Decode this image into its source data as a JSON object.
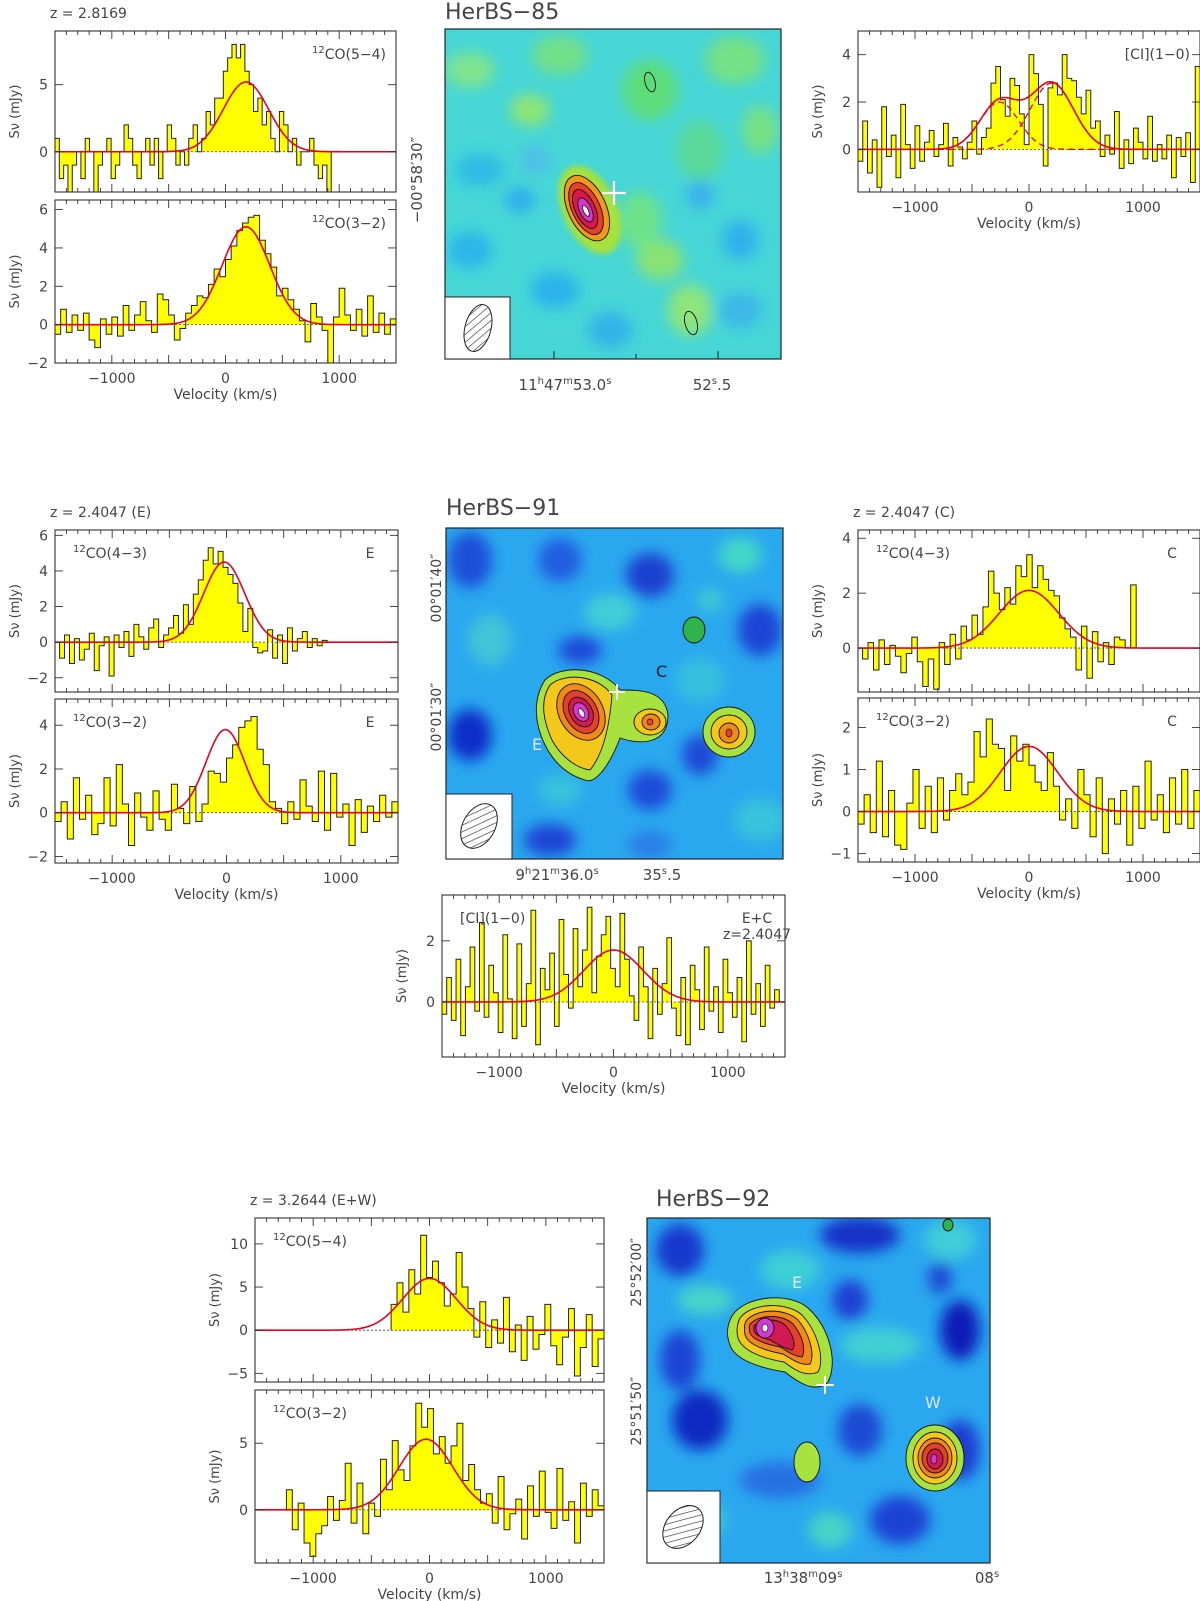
{
  "chart_data": [
    {
      "id": "s85a",
      "type": "step",
      "redshift_label": "z = 2.8169",
      "line_label": "12CO(5−4)",
      "line_iso": "12",
      "line_main": "CO(5−4)",
      "ylabel": "Sν (mJy)",
      "xlabel": "",
      "xlim": [
        -1500,
        1500
      ],
      "ylim": [
        -3,
        9
      ],
      "yticks": [
        0,
        5
      ],
      "xticks": [
        -1000,
        0,
        1000
      ],
      "show_xticklabels": false,
      "x_start": -1500,
      "x_end": 930,
      "values": [
        1,
        -2,
        -1,
        -3,
        -1,
        0,
        -2,
        1,
        0,
        -3,
        -1,
        0,
        1,
        -2,
        -1,
        0,
        2,
        1,
        -1,
        -2,
        0,
        1,
        -1,
        1,
        -2,
        0,
        2,
        1,
        -1,
        0,
        -1,
        1,
        2,
        0,
        1,
        3,
        2,
        4,
        4,
        6,
        7,
        8,
        7,
        8,
        6,
        5,
        3,
        4,
        2,
        3,
        1,
        0,
        3,
        2,
        0,
        1,
        -1,
        0,
        0,
        1,
        -1,
        -2,
        -1,
        -3
      ],
      "gaussian": [
        {
          "amp": 5.2,
          "center": 180,
          "sigma": 200
        }
      ],
      "baseline_dashed": true
    },
    {
      "id": "s85b",
      "type": "step",
      "line_label": "12CO(3−2)",
      "line_iso": "12",
      "line_main": "CO(3−2)",
      "ylabel": "Sν (mJy)",
      "xlabel": "Velocity (km/s)",
      "xlim": [
        -1500,
        1500
      ],
      "ylim": [
        -2,
        6.5
      ],
      "yticks": [
        -2,
        0,
        2,
        4,
        6
      ],
      "xticks": [
        -1000,
        0,
        1000
      ],
      "show_xticklabels": true,
      "x_start": -1500,
      "x_end": 1500,
      "values": [
        -0.5,
        0.8,
        -0.4,
        0.5,
        -0.3,
        0.6,
        -0.8,
        -1.2,
        0.3,
        -0.5,
        0.4,
        -0.6,
        1.0,
        -0.3,
        0.5,
        1.2,
        0.2,
        -0.4,
        1.6,
        1.3,
        0.5,
        -0.8,
        -0.2,
        0.6,
        1.0,
        1.5,
        1.4,
        2.1,
        2.9,
        2.5,
        3.4,
        4.1,
        4.9,
        5.3,
        5.6,
        5.7,
        4.4,
        3.7,
        3.0,
        1.5,
        1.9,
        1.3,
        0.8,
        0.2,
        -0.9,
        1.1,
        0.4,
        -0.3,
        -2.0,
        0.4,
        1.9,
        0.5,
        -0.3,
        0.8,
        -0.6,
        1.5,
        -0.4,
        0.6,
        -0.5,
        0.3
      ],
      "gaussian": [
        {
          "amp": 5.1,
          "center": 180,
          "sigma": 210
        }
      ],
      "baseline_dashed": true
    },
    {
      "id": "s85c",
      "type": "step",
      "line_label": "[CI](1−0)",
      "line_iso": "",
      "line_main": "[CI](1−0)",
      "ylabel": "Sν (mJy)",
      "xlabel": "Velocity (km/s)",
      "xlim": [
        -1500,
        1500
      ],
      "ylim": [
        -1.8,
        5
      ],
      "yticks": [
        0,
        2,
        4
      ],
      "xticks": [
        -1000,
        0,
        1000
      ],
      "show_xticklabels": true,
      "x_start": -1500,
      "x_end": 1500,
      "values": [
        -0.5,
        1.2,
        -1.0,
        0.4,
        -1.6,
        1.8,
        -0.3,
        0.6,
        -1.2,
        1.9,
        0.2,
        -0.8,
        1.0,
        -0.5,
        0.3,
        0.8,
        -0.3,
        0.2,
        1.1,
        -0.7,
        0.5,
        0.1,
        -0.4,
        0.3,
        1.2,
        -0.2,
        0.5,
        0.9,
        2.8,
        3.5,
        2.1,
        1.4,
        3.0,
        2.7,
        1.5,
        0.2,
        4.0,
        3.2,
        1.9,
        -0.7,
        2.6,
        2.8,
        2.3,
        4.0,
        3.0,
        2.9,
        2.2,
        1.5,
        2.5,
        0.9,
        1.2,
        -0.3,
        0.6,
        -0.2,
        1.6,
        -0.8,
        0.4,
        -0.6,
        0.9,
        0.3,
        -0.4,
        1.4,
        -0.5,
        0.2,
        -0.4,
        0.6,
        -1.2,
        0.5,
        -0.3,
        0.7,
        -1.4,
        3.5
      ],
      "gaussian": [
        {
          "amp": 2.0,
          "center": -260,
          "sigma": 170
        },
        {
          "amp": 2.8,
          "center": 200,
          "sigma": 190
        }
      ],
      "baseline_dashed": true
    },
    {
      "id": "s91a",
      "type": "step",
      "redshift_label": "z = 2.4047 (E)",
      "line_label": "12CO(4−3)",
      "line_iso": "12",
      "line_main": "CO(4−3)",
      "tag": "E",
      "ylabel": "Sν (mJy)",
      "xlabel": "",
      "xlim": [
        -1500,
        1500
      ],
      "ylim": [
        -2.8,
        6.3
      ],
      "yticks": [
        -2,
        0,
        2,
        4,
        6
      ],
      "xticks": [
        -1000,
        0,
        1000
      ],
      "show_xticklabels": false,
      "x_start": -1460,
      "x_end": 880,
      "values": [
        -0.9,
        0.4,
        -1.2,
        0.2,
        -1.0,
        -0.4,
        0.5,
        -1.6,
        -0.2,
        0.3,
        -1.9,
        0.4,
        -0.3,
        0.6,
        -0.8,
        1.0,
        0.3,
        -0.4,
        0.8,
        1.3,
        -0.3,
        0.4,
        0.8,
        1.5,
        0.5,
        2.1,
        1.0,
        2.7,
        3.5,
        4.6,
        5.3,
        4.4,
        5.1,
        4.2,
        3.8,
        3.3,
        2.2,
        0.6,
        1.9,
        -0.3,
        -0.6,
        -0.5,
        0.7,
        -0.9,
        0.4,
        -1.2,
        0.8,
        -0.5,
        0.2,
        0.6,
        -0.3,
        0.2,
        -0.2,
        0.1
      ],
      "gaussian": [
        {
          "amp": 4.5,
          "center": -20,
          "sigma": 180
        }
      ],
      "baseline_dashed": false
    },
    {
      "id": "s91b",
      "type": "step",
      "line_label": "12CO(3−2)",
      "line_iso": "12",
      "line_main": "CO(3−2)",
      "tag": "E",
      "ylabel": "Sν (mJy)",
      "xlabel": "Velocity (km/s)",
      "xlim": [
        -1500,
        1500
      ],
      "ylim": [
        -2.3,
        5.2
      ],
      "yticks": [
        -2,
        0,
        2,
        4
      ],
      "xticks": [
        -1000,
        0,
        1000
      ],
      "show_xticklabels": true,
      "x_start": -1500,
      "x_end": 1500,
      "values": [
        -0.4,
        0.5,
        -1.2,
        1.6,
        -0.3,
        0.8,
        -1.0,
        -0.5,
        1.6,
        -0.6,
        2.2,
        0.4,
        -1.5,
        0.9,
        -0.2,
        -0.8,
        1.0,
        -0.3,
        -0.8,
        1.3,
        0.2,
        -0.5,
        1.2,
        -0.4,
        0.4,
        1.9,
        1.8,
        1.4,
        2.5,
        3.1,
        3.9,
        4.2,
        4.4,
        2.9,
        2.2,
        0.5,
        0.2,
        -0.5,
        0.5,
        -0.3,
        1.5,
        0.3,
        -0.4,
        1.9,
        -0.8,
        1.8,
        -0.2,
        0.4,
        -1.5,
        0.6,
        -0.9,
        0.3,
        -0.4,
        0.8,
        -0.2,
        0.5
      ],
      "gaussian": [
        {
          "amp": 3.8,
          "center": -10,
          "sigma": 170
        }
      ],
      "baseline_dashed": false
    },
    {
      "id": "s91c",
      "type": "step",
      "redshift_label": "z = 2.4047 (C)",
      "line_label": "12CO(4−3)",
      "line_iso": "12",
      "line_main": "CO(4−3)",
      "tag": "C",
      "ylabel": "Sν (mJy)",
      "xlabel": "",
      "xlim": [
        -1500,
        1500
      ],
      "ylim": [
        -1.6,
        4.3
      ],
      "yticks": [
        0,
        2,
        4
      ],
      "xticks": [
        -1000,
        0,
        1000
      ],
      "show_xticklabels": false,
      "x_start": -1460,
      "x_end": 940,
      "values": [
        -0.4,
        0.2,
        -0.8,
        0.3,
        -0.6,
        0.1,
        -0.3,
        -0.9,
        -0.2,
        0.4,
        -0.5,
        -1.4,
        -0.4,
        -1.5,
        0.2,
        -0.6,
        0.5,
        -0.4,
        0.8,
        0.3,
        1.2,
        0.5,
        1.5,
        2.8,
        2.0,
        1.4,
        2.2,
        1.6,
        3.0,
        2.6,
        3.4,
        2.2,
        3.0,
        2.5,
        2.1,
        1.9,
        1.1,
        0.7,
        0.4,
        -0.8,
        0.8,
        -1.1,
        0.6,
        -0.5,
        0.2,
        -0.6,
        0.4,
        0.3,
        0,
        2.3
      ],
      "gaussian": [
        {
          "amp": 2.1,
          "center": 0,
          "sigma": 260
        }
      ],
      "baseline_dashed": false
    },
    {
      "id": "s91d",
      "type": "step",
      "line_label": "12CO(3−2)",
      "line_iso": "12",
      "line_main": "CO(3−2)",
      "tag": "C",
      "ylabel": "Sν (mJy)",
      "xlabel": "Velocity (km/s)",
      "xlim": [
        -1500,
        1500
      ],
      "ylim": [
        -1.2,
        2.7
      ],
      "yticks": [
        -1,
        0,
        1,
        2
      ],
      "xticks": [
        -1000,
        0,
        1000
      ],
      "show_xticklabels": true,
      "x_start": -1500,
      "x_end": 1500,
      "values": [
        -0.3,
        0.4,
        -0.5,
        1.2,
        -0.6,
        0.5,
        -0.8,
        -0.9,
        0.2,
        1.0,
        -0.4,
        0.6,
        -0.5,
        0.8,
        -0.2,
        0.5,
        0.9,
        0.4,
        0.7,
        1.9,
        1.3,
        2.2,
        1.6,
        1.5,
        0.5,
        1.8,
        1.2,
        1.6,
        1.1,
        0.7,
        0.5,
        1.4,
        0.6,
        -0.2,
        0.3,
        -0.4,
        1.0,
        0.4,
        -0.6,
        0.8,
        -1.0,
        0.3,
        -0.3,
        0.5,
        -0.8,
        0.6,
        -0.4,
        1.2,
        -0.2,
        0.4,
        -0.5,
        0.8,
        -0.3,
        1.0,
        -0.4,
        0.5
      ],
      "gaussian": [
        {
          "amp": 1.55,
          "center": 0,
          "sigma": 250
        }
      ],
      "baseline_dashed": false
    },
    {
      "id": "s91e",
      "type": "step",
      "line_label": "[CI](1−0)",
      "line_iso": "",
      "line_main": "[CI](1−0)",
      "tag": "E+C",
      "tag2": "z=2.4047",
      "ylabel": "Sν (mJy)",
      "xlabel": "Velocity (km/s)",
      "xlim": [
        -1500,
        1500
      ],
      "ylim": [
        -1.8,
        3.5
      ],
      "yticks": [
        0,
        2
      ],
      "xticks": [
        -1000,
        0,
        1000
      ],
      "show_xticklabels": true,
      "x_start": -1500,
      "x_end": 1450,
      "values": [
        -0.4,
        0.8,
        -0.6,
        1.4,
        -1.1,
        0.5,
        1.8,
        -0.3,
        2.6,
        -0.5,
        1.2,
        0.3,
        -1.0,
        2.2,
        0.1,
        -1.2,
        1.9,
        -0.8,
        0.6,
        3.0,
        -1.4,
        1.1,
        0.4,
        1.6,
        -0.8,
        2.7,
        0.9,
        -0.2,
        2.4,
        0.5,
        1.7,
        3.1,
        0.3,
        1.5,
        2.2,
        2.8,
        1.1,
        0.5,
        2.9,
        1.4,
        0.2,
        -0.6,
        1.8,
        0.5,
        -1.2,
        1.1,
        -0.4,
        0.6,
        2.1,
        -0.2,
        -1.1,
        0.8,
        -1.4,
        1.2,
        0.4,
        -0.9,
        1.8,
        -0.3,
        0.5,
        -1.0,
        1.4,
        0.3,
        -0.5,
        0.8,
        -1.3,
        2.0,
        -0.4,
        0.6,
        -0.8,
        1.2,
        -0.2,
        0.4
      ],
      "gaussian": [
        {
          "amp": 1.7,
          "center": 0,
          "sigma": 260
        }
      ],
      "baseline_dashed": false
    },
    {
      "id": "s92a",
      "type": "step",
      "redshift_label": "z = 3.2644 (E+W)",
      "line_label": "12CO(5−4)",
      "line_iso": "12",
      "line_main": "CO(5−4)",
      "ylabel": "Sν (mJy)",
      "xlabel": "",
      "xlim": [
        -1500,
        1500
      ],
      "ylim": [
        -6,
        13
      ],
      "yticks": [
        -5,
        0,
        5,
        10
      ],
      "xticks": [
        -1000,
        0,
        1000
      ],
      "show_xticklabels": false,
      "x_start": -330,
      "x_end": 1500,
      "values": [
        3.0,
        5.5,
        2.1,
        7.0,
        4.2,
        11.0,
        6.1,
        8.0,
        5.5,
        2.8,
        4.2,
        9.0,
        5.0,
        2.5,
        -0.8,
        3.3,
        -2.0,
        1.2,
        -1.5,
        3.8,
        -2.5,
        0.6,
        -3.5,
        1.6,
        -2.2,
        -0.5,
        3.0,
        -1.8,
        -4.0,
        -0.8,
        2.5,
        -5.3,
        -2.0,
        1.8,
        -4.2,
        -1.0
      ],
      "gaussian": [
        {
          "amp": 6.0,
          "center": 0,
          "sigma": 230
        }
      ],
      "baseline_dashed": false
    },
    {
      "id": "s92b",
      "type": "step",
      "line_label": "12CO(3−2)",
      "line_iso": "12",
      "line_main": "CO(3−2)",
      "ylabel": "Sν (mJy)",
      "xlabel": "Velocity (km/s)",
      "xlim": [
        -1500,
        1500
      ],
      "ylim": [
        -4,
        9
      ],
      "yticks": [
        0,
        5
      ],
      "xticks": [
        -1000,
        0,
        1000
      ],
      "show_xticklabels": true,
      "x_start": -1230,
      "x_end": 1500,
      "values": [
        1.5,
        -1.5,
        0.5,
        -2.5,
        -3.5,
        -1.8,
        -1.2,
        1.0,
        -0.8,
        0.7,
        3.5,
        -1.0,
        2.0,
        -1.8,
        0.5,
        -0.5,
        3.8,
        1.5,
        5.2,
        3.0,
        2.2,
        4.8,
        8.0,
        6.2,
        7.6,
        4.2,
        5.5,
        3.5,
        4.8,
        6.5,
        2.2,
        3.4,
        1.5,
        0.5,
        1.2,
        -1.0,
        2.5,
        -1.5,
        -0.3,
        0.8,
        -2.2,
        1.8,
        -0.5,
        2.9,
        -0.2,
        -1.4,
        3.1,
        -0.8,
        0.6,
        -2.5,
        2.0,
        -0.5,
        1.5,
        0.3
      ],
      "gaussian": [
        {
          "amp": 5.3,
          "center": -30,
          "sigma": 230
        }
      ],
      "baseline_dashed": false
    }
  ],
  "maps": [
    {
      "id": "m85",
      "source": "HerBS−85",
      "ra_major": "11h47m53.0s",
      "ra_label_main": "11",
      "ra_h": "h",
      "ra_mid": "47",
      "ra_m": "m",
      "ra_sec": "53.0",
      "ra_s": "s",
      "ra_minor": "52.5",
      "ra_minor_main": "52",
      "ra_minor_s": "s",
      "ra_minor_frac": ".5",
      "dec_label": "−00°58′30″",
      "sources": []
    },
    {
      "id": "m91",
      "source": "HerBS−91",
      "ra_major": "9h21m36.0s",
      "ra_label_main": "9",
      "ra_h": "h",
      "ra_mid": "21",
      "ra_m": "m",
      "ra_sec": "36.0",
      "ra_s": "s",
      "ra_minor": "35.5",
      "ra_minor_main": "35",
      "ra_minor_s": "s",
      "ra_minor_frac": ".5",
      "dec_label": "00°01′40″",
      "dec_label2": "00°01′30″",
      "sources": [
        "E",
        "C"
      ]
    },
    {
      "id": "m92",
      "source": "HerBS−92",
      "ra_major": "13h38m09s",
      "ra_label_main": "13",
      "ra_h": "h",
      "ra_mid": "38",
      "ra_m": "m",
      "ra_sec": "09",
      "ra_s": "s",
      "ra_minor": "08s",
      "ra_minor_main": "08",
      "ra_minor_s": "s",
      "ra_minor_frac": "",
      "dec_label": "25°52′00″",
      "dec_label2": "25°51′50″",
      "sources": [
        "E",
        "W"
      ]
    }
  ],
  "colors": {
    "fill": "#ffff00",
    "fit": "#e8001c",
    "axis": "#333333",
    "text": "#444444"
  }
}
